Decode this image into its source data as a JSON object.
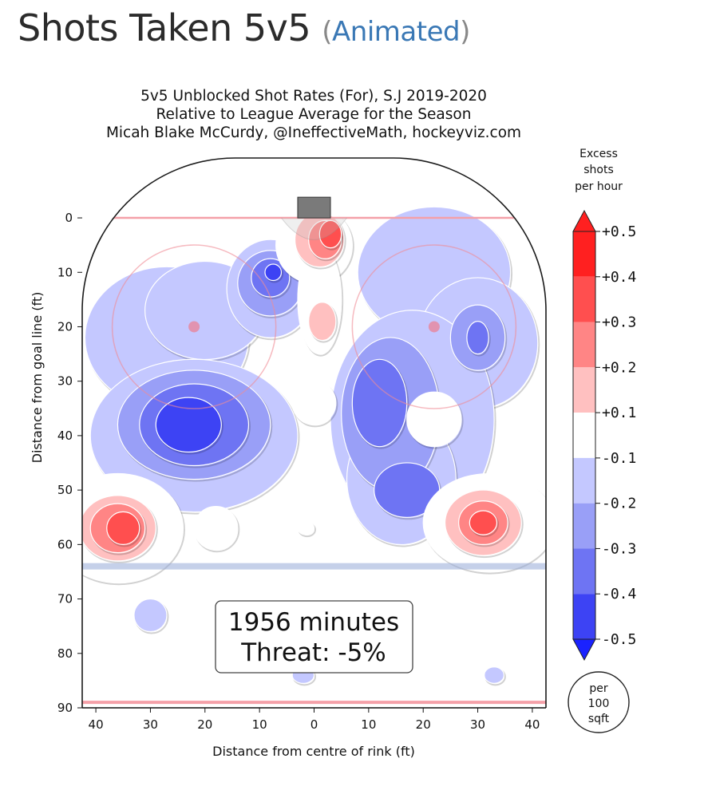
{
  "page": {
    "heading": "Shots Taken 5v5",
    "link_open": "(",
    "link_text": "Animated",
    "link_close": ")"
  },
  "chart_data": {
    "type": "heatmap",
    "title_lines": [
      "5v5 Unblocked Shot Rates (For), S.J 2019-2020",
      "Relative to League Average for the Season",
      "Micah Blake McCurdy, @IneffectiveMath, hockeyviz.com"
    ],
    "xlabel": "Distance from centre of rink (ft)",
    "ylabel": "Distance from goal line (ft)",
    "x_ticks": [
      "40",
      "30",
      "20",
      "10",
      "0",
      "10",
      "20",
      "30",
      "40"
    ],
    "y_ticks": [
      "0",
      "10",
      "20",
      "30",
      "40",
      "50",
      "60",
      "70",
      "80",
      "90"
    ],
    "xlim": [
      -42.5,
      42.5
    ],
    "ylim": [
      90,
      -11
    ],
    "colorbar": {
      "label_lines": [
        "Excess",
        "shots",
        "per hour"
      ],
      "tick_labels": [
        "+0.5",
        "+0.4",
        "+0.3",
        "+0.2",
        "+0.1",
        "-0.1",
        "-0.2",
        "-0.3",
        "-0.4",
        "-0.5"
      ],
      "levels": [
        0.5,
        0.4,
        0.3,
        0.2,
        0.1,
        -0.1,
        -0.2,
        -0.3,
        -0.4,
        -0.5
      ],
      "colors": [
        "#ff2020",
        "#ff4f4f",
        "#ff8585",
        "#ffc0c0",
        "#ffffff",
        "#c4c8ff",
        "#999ff7",
        "#6e74f3",
        "#3d43f4",
        "#1a22ff"
      ]
    },
    "scale_note_lines": [
      "per",
      "100",
      "sqft"
    ],
    "annotation": {
      "minutes": "1956 minutes",
      "threat": "Threat: -5%"
    },
    "blobs": [
      {
        "x": -27,
        "y": 22,
        "rx": 15,
        "ry": 13,
        "level": -0.1
      },
      {
        "x": -20,
        "y": 17,
        "rx": 11,
        "ry": 9,
        "level": -0.1
      },
      {
        "x": -22,
        "y": 40,
        "rx": 19,
        "ry": 14,
        "level": -0.1
      },
      {
        "x": -8,
        "y": 13,
        "rx": 8,
        "ry": 9,
        "level": -0.1
      },
      {
        "x": -22,
        "y": 38,
        "rx": 14,
        "ry": 10,
        "level": -0.2
      },
      {
        "x": -8,
        "y": 12,
        "rx": 6,
        "ry": 6,
        "level": -0.2
      },
      {
        "x": -22,
        "y": 38,
        "rx": 10,
        "ry": 7.5,
        "level": -0.3
      },
      {
        "x": -8,
        "y": 11,
        "rx": 3.5,
        "ry": 3.5,
        "level": -0.3
      },
      {
        "x": -23,
        "y": 38,
        "rx": 6,
        "ry": 5,
        "level": -0.4
      },
      {
        "x": -7.5,
        "y": 10,
        "rx": 1.5,
        "ry": 1.5,
        "level": -0.4
      },
      {
        "x": 22,
        "y": 10,
        "rx": 14,
        "ry": 12,
        "level": -0.1
      },
      {
        "x": 30,
        "y": 23,
        "rx": 11,
        "ry": 12,
        "level": -0.1
      },
      {
        "x": 18,
        "y": 37,
        "rx": 15,
        "ry": 20,
        "level": -0.1
      },
      {
        "x": 16,
        "y": 48,
        "rx": 10,
        "ry": 12,
        "level": -0.1
      },
      {
        "x": 14,
        "y": 36,
        "rx": 9,
        "ry": 14,
        "level": -0.2
      },
      {
        "x": 30,
        "y": 22,
        "rx": 5,
        "ry": 6,
        "level": -0.2
      },
      {
        "x": 17,
        "y": 50,
        "rx": 6,
        "ry": 5,
        "level": -0.3
      },
      {
        "x": 12,
        "y": 34,
        "rx": 5,
        "ry": 8,
        "level": -0.3
      },
      {
        "x": 30,
        "y": 22,
        "rx": 2,
        "ry": 3,
        "level": -0.3
      },
      {
        "x": -30,
        "y": 73,
        "rx": 3,
        "ry": 3,
        "level": -0.1
      },
      {
        "x": -2,
        "y": 84,
        "rx": 2,
        "ry": 1.5,
        "level": -0.1
      },
      {
        "x": 33,
        "y": 84,
        "rx": 1.8,
        "ry": 1.5,
        "level": -0.1
      },
      {
        "x": 0,
        "y": 5,
        "rx": 7,
        "ry": 7,
        "level": 0.1
      },
      {
        "x": 1,
        "y": 15,
        "rx": 4,
        "ry": 10,
        "level": 0.1
      },
      {
        "x": 1,
        "y": 4,
        "rx": 4.5,
        "ry": 5,
        "level": 0.2
      },
      {
        "x": 1.5,
        "y": 19,
        "rx": 2.5,
        "ry": 3.5,
        "level": 0.2
      },
      {
        "x": 2,
        "y": 4,
        "rx": 3,
        "ry": 3.5,
        "level": 0.3
      },
      {
        "x": 3,
        "y": 3,
        "rx": 2,
        "ry": 2.5,
        "level": 0.4
      },
      {
        "x": 0,
        "y": 34,
        "rx": 4,
        "ry": 4,
        "level": 0.1
      },
      {
        "x": 22,
        "y": 37,
        "rx": 5,
        "ry": 5,
        "level": 0.1
      },
      {
        "x": -18,
        "y": 57,
        "rx": 4,
        "ry": 4,
        "level": 0.1
      },
      {
        "x": -1.5,
        "y": 57,
        "rx": 1.5,
        "ry": 1.2,
        "level": 0.1
      },
      {
        "x": -36,
        "y": 57,
        "rx": 12,
        "ry": 10,
        "level": 0.1
      },
      {
        "x": 32,
        "y": 56,
        "rx": 12,
        "ry": 9,
        "level": 0.1
      },
      {
        "x": -36,
        "y": 57,
        "rx": 7,
        "ry": 6,
        "level": 0.2
      },
      {
        "x": 31,
        "y": 56,
        "rx": 7,
        "ry": 6,
        "level": 0.2
      },
      {
        "x": -36,
        "y": 57,
        "rx": 5,
        "ry": 4.5,
        "level": 0.3
      },
      {
        "x": 31,
        "y": 56,
        "rx": 4.5,
        "ry": 4,
        "level": 0.3
      },
      {
        "x": -35,
        "y": 57,
        "rx": 3,
        "ry": 3,
        "level": 0.4
      },
      {
        "x": 31,
        "y": 56,
        "rx": 2.5,
        "ry": 2.2,
        "level": 0.4
      }
    ]
  }
}
